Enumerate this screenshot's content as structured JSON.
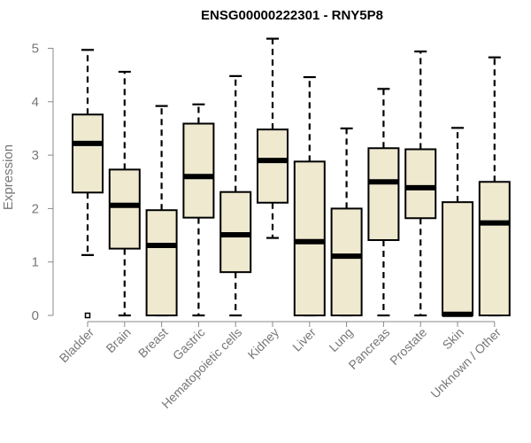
{
  "chart_data": {
    "type": "box",
    "title": "ENSG00000222301 - RNY5P8",
    "xlabel": "",
    "ylabel": "Expression",
    "ylim": [
      0,
      5.2
    ],
    "yticks": [
      "0",
      "1",
      "2",
      "3",
      "4",
      "5"
    ],
    "box_fill": "#efe9d0",
    "stroke": "#000000",
    "categories": [
      "Bladder",
      "Brain",
      "Breast",
      "Gastric",
      "Hematopoietic cells",
      "Kidney",
      "Liver",
      "Lung",
      "Pancreas",
      "Prostate",
      "Skin",
      "Unknown / Other"
    ],
    "boxes": [
      {
        "whisker_low": 1.13,
        "q1": 2.3,
        "median": 3.22,
        "q3": 3.76,
        "whisker_high": 4.97,
        "outliers": [
          0.0
        ]
      },
      {
        "whisker_low": 0.0,
        "q1": 1.25,
        "median": 2.06,
        "q3": 2.73,
        "whisker_high": 4.56,
        "outliers": []
      },
      {
        "whisker_low": 0.0,
        "q1": 0.0,
        "median": 1.31,
        "q3": 1.97,
        "whisker_high": 3.92,
        "outliers": []
      },
      {
        "whisker_low": 0.0,
        "q1": 1.83,
        "median": 2.6,
        "q3": 3.59,
        "whisker_high": 3.95,
        "outliers": []
      },
      {
        "whisker_low": 0.0,
        "q1": 0.81,
        "median": 1.51,
        "q3": 2.31,
        "whisker_high": 4.48,
        "outliers": []
      },
      {
        "whisker_low": 1.45,
        "q1": 2.11,
        "median": 2.9,
        "q3": 3.48,
        "whisker_high": 5.18,
        "outliers": []
      },
      {
        "whisker_low": 0.0,
        "q1": 0.0,
        "median": 1.38,
        "q3": 2.88,
        "whisker_high": 4.46,
        "outliers": []
      },
      {
        "whisker_low": 0.0,
        "q1": 0.0,
        "median": 1.11,
        "q3": 2.0,
        "whisker_high": 3.5,
        "outliers": []
      },
      {
        "whisker_low": 0.0,
        "q1": 1.41,
        "median": 2.5,
        "q3": 3.13,
        "whisker_high": 4.24,
        "outliers": []
      },
      {
        "whisker_low": 0.0,
        "q1": 1.82,
        "median": 2.39,
        "q3": 3.11,
        "whisker_high": 4.94,
        "outliers": []
      },
      {
        "whisker_low": 0.0,
        "q1": 0.0,
        "median": 0.02,
        "q3": 2.12,
        "whisker_high": 3.51,
        "outliers": []
      },
      {
        "whisker_low": 0.0,
        "q1": 0.0,
        "median": 1.73,
        "q3": 2.5,
        "whisker_high": 4.83,
        "outliers": []
      }
    ]
  }
}
